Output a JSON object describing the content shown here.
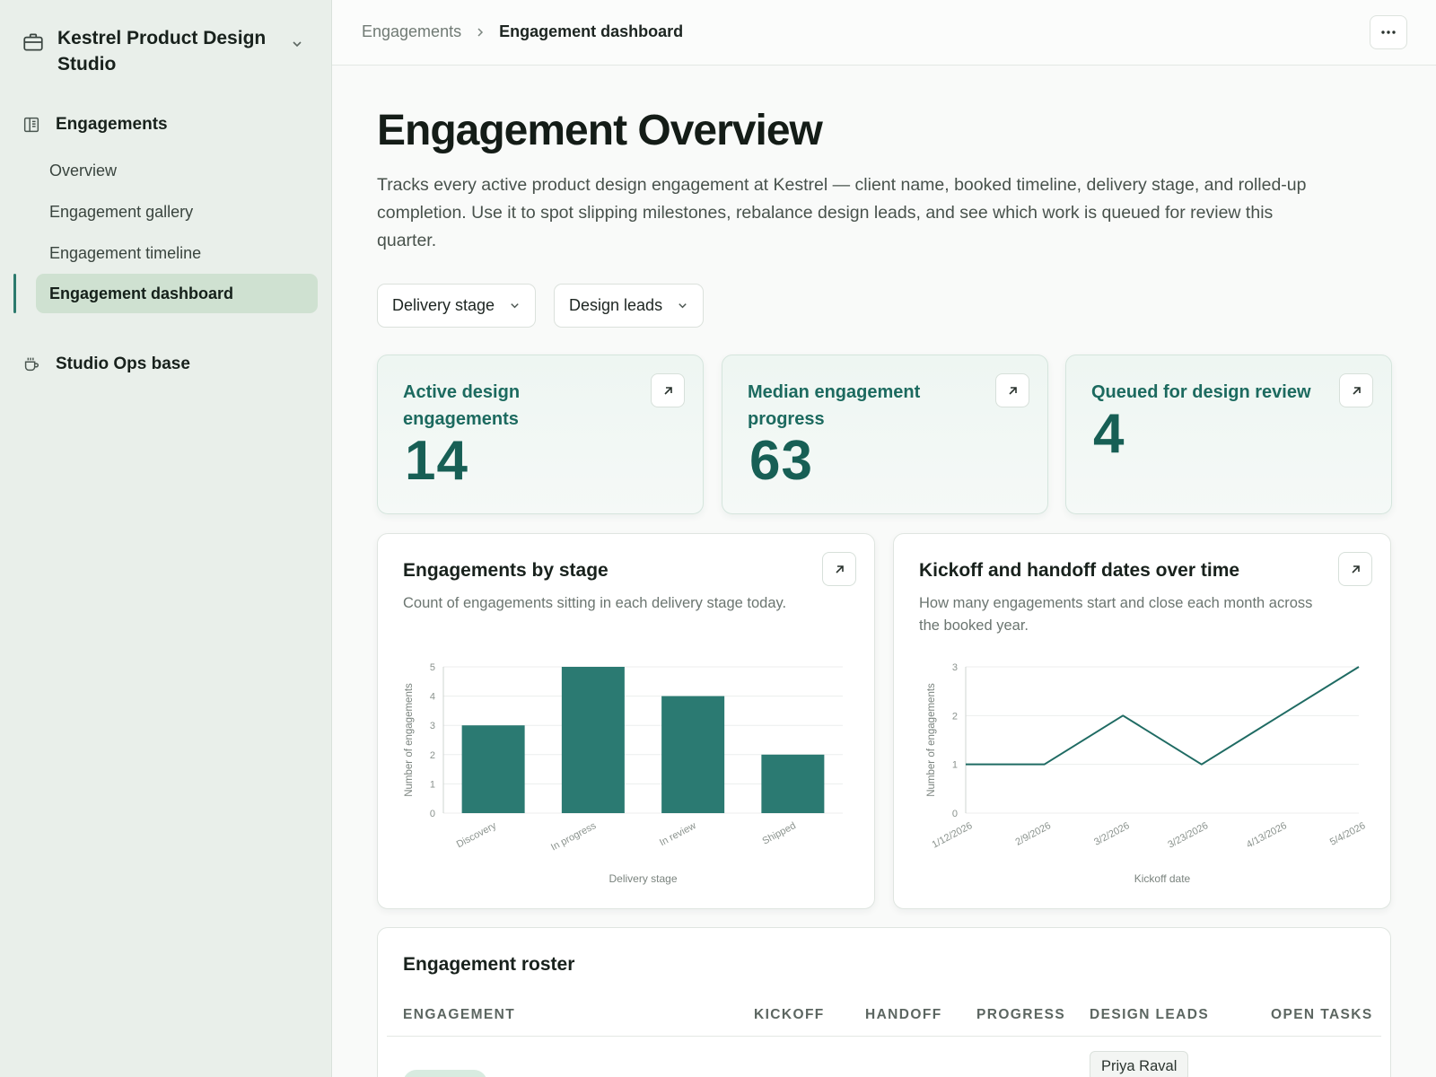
{
  "workspace": {
    "name": "Kestrel Product Design Studio"
  },
  "sidebar": {
    "section": "Engagements",
    "items": [
      {
        "label": "Overview"
      },
      {
        "label": "Engagement gallery"
      },
      {
        "label": "Engagement timeline"
      },
      {
        "label": "Engagement dashboard",
        "active": true
      }
    ],
    "base": "Studio Ops base"
  },
  "breadcrumb": {
    "parent": "Engagements",
    "current": "Engagement dashboard"
  },
  "main": {
    "title": "Engagement Overview",
    "description": "Tracks every active product design engagement at Kestrel — client name, booked timeline, delivery stage, and rolled-up completion. Use it to spot slipping milestones, rebalance design leads, and see which work is queued for review this quarter."
  },
  "filters": {
    "stage": "Delivery stage",
    "leads": "Design leads"
  },
  "kpis": [
    {
      "label": "Active design engagements",
      "value": "14"
    },
    {
      "label": "Median engagement progress",
      "value": "63"
    },
    {
      "label": "Queued for design review",
      "value": "4"
    }
  ],
  "cards": {
    "stage": {
      "title": "Engagements by stage",
      "subtitle": "Count of engagements sitting in each delivery stage today."
    },
    "dates": {
      "title": "Kickoff and handoff dates over time",
      "subtitle": "How many engagements start and close each month across the booked year."
    }
  },
  "chart_data": [
    {
      "type": "bar",
      "categories": [
        "Discovery",
        "In progress",
        "In review",
        "Shipped"
      ],
      "values": [
        3,
        5,
        4,
        2
      ],
      "xlabel": "Delivery stage",
      "ylabel": "Number of engagements",
      "ylim": [
        0,
        5
      ],
      "yticks": [
        0,
        1,
        2,
        3,
        4,
        5
      ],
      "grid": true,
      "color": "#2b7a72"
    },
    {
      "type": "line",
      "x": [
        "1/12/2026",
        "2/9/2026",
        "3/2/2026",
        "3/23/2026",
        "4/13/2026",
        "5/4/2026"
      ],
      "values": [
        1,
        1,
        2,
        1,
        2,
        3
      ],
      "xlabel": "Kickoff date",
      "ylabel": "Number of engagements",
      "ylim": [
        0,
        3
      ],
      "yticks": [
        0,
        1,
        2,
        3
      ],
      "grid": true,
      "color": "#1f6b63"
    }
  ],
  "roster": {
    "title": "Engagement roster",
    "columns": [
      "ENGAGEMENT",
      "KICKOFF",
      "HANDOFF",
      "PROGRESS",
      "DESIGN LEADS",
      "OPEN TASKS"
    ],
    "first_row": {
      "lead": "Priya Raval"
    }
  }
}
